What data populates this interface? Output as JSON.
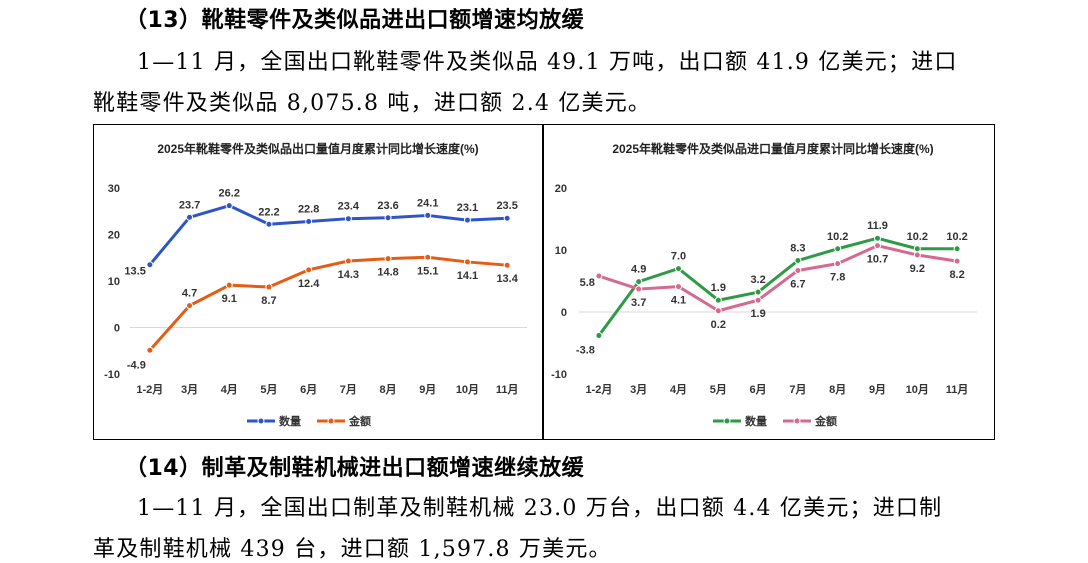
{
  "section13": {
    "heading": "（13）靴鞋零件及类似品进出口额增速均放缓",
    "para_line1": "1—11 月，全国出口靴鞋零件及类似品 49.1 万吨，出口额 41.9 亿美元；进口",
    "para_line2": "靴鞋零件及类似品 8,075.8 吨，进口额 2.4 亿美元。"
  },
  "chart_data": [
    {
      "type": "line",
      "title": "2025年靴鞋零件及类似品出口量值月度累计同比增长速度(%)",
      "categories": [
        "1-2月",
        "3月",
        "4月",
        "5月",
        "6月",
        "7月",
        "8月",
        "9月",
        "10月",
        "11月"
      ],
      "ylim": [
        -10,
        30
      ],
      "yticks": [
        30,
        20,
        10,
        0,
        -10
      ],
      "series": [
        {
          "name": "数量",
          "color": "#2e55c8",
          "values": [
            13.5,
            23.7,
            26.2,
            22.2,
            22.8,
            23.4,
            23.6,
            24.1,
            23.1,
            23.5
          ]
        },
        {
          "name": "金额",
          "color": "#e65c14",
          "values": [
            -4.9,
            4.7,
            9.1,
            8.7,
            12.4,
            14.3,
            14.8,
            15.1,
            14.1,
            13.4
          ]
        }
      ]
    },
    {
      "type": "line",
      "title": "2025年靴鞋零件及类似品进口量值月度累计同比增长速度(%)",
      "categories": [
        "1-2月",
        "3月",
        "4月",
        "5月",
        "6月",
        "7月",
        "8月",
        "9月",
        "10月",
        "11月"
      ],
      "ylim": [
        -10,
        20
      ],
      "yticks": [
        20,
        10,
        0,
        -10
      ],
      "series": [
        {
          "name": "数量",
          "color": "#2e9a46",
          "values": [
            -3.8,
            4.9,
            7.0,
            1.9,
            3.2,
            8.3,
            10.2,
            11.9,
            10.2,
            10.2
          ]
        },
        {
          "name": "金额",
          "color": "#d7688e",
          "values": [
            5.8,
            3.7,
            4.1,
            0.2,
            1.9,
            6.7,
            7.8,
            10.7,
            9.2,
            8.2
          ]
        }
      ]
    }
  ],
  "section14": {
    "heading": "（14）制革及制鞋机械进出口额增速继续放缓",
    "para_line1": "1—11 月，全国出口制革及制鞋机械 23.0 万台，出口额 4.4 亿美元；进口制",
    "para_line2": "革及制鞋机械 439 台，进口额 1,597.8 万美元。"
  }
}
